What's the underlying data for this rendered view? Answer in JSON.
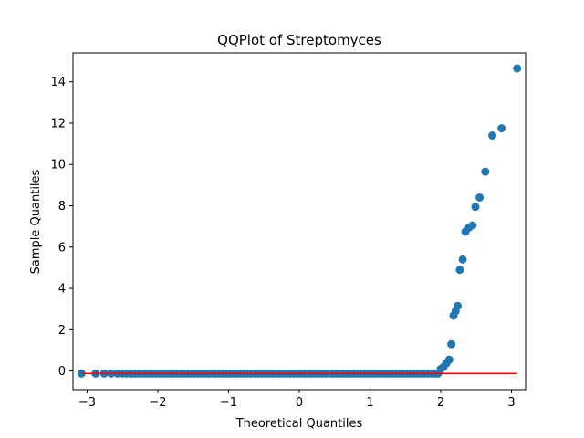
{
  "chart_data": {
    "type": "scatter",
    "title": "QQPlot of Streptomyces",
    "xlabel": "Theoretical Quantiles",
    "ylabel": "Sample Quantiles",
    "xlim": [
      -3.2,
      3.2
    ],
    "ylim": [
      -0.9,
      15.4
    ],
    "xticks": [
      -3,
      -2,
      -1,
      0,
      1,
      2,
      3
    ],
    "yticks": [
      0,
      2,
      4,
      6,
      8,
      10,
      12,
      14
    ],
    "grid": false,
    "colors": {
      "points": "#1f77b4",
      "reference_line": "#ff0000"
    },
    "reference_line": {
      "x": [
        -3.08,
        3.08
      ],
      "y": [
        -0.12,
        -0.12
      ]
    },
    "tail_points": [
      [
        2.0,
        0.1
      ],
      [
        2.04,
        0.2
      ],
      [
        2.08,
        0.38
      ],
      [
        2.12,
        0.55
      ],
      [
        2.15,
        1.3
      ],
      [
        2.18,
        2.68
      ],
      [
        2.21,
        2.9
      ],
      [
        2.24,
        3.15
      ],
      [
        2.27,
        4.9
      ],
      [
        2.31,
        5.4
      ],
      [
        2.35,
        6.75
      ],
      [
        2.4,
        6.95
      ],
      [
        2.45,
        7.05
      ],
      [
        2.49,
        7.95
      ],
      [
        2.55,
        8.4
      ],
      [
        2.63,
        9.65
      ],
      [
        2.73,
        11.4
      ],
      [
        2.86,
        11.75
      ],
      [
        3.08,
        14.65
      ]
    ],
    "flat_points": {
      "x": [
        -3.08,
        -2.88,
        -2.76,
        -2.66,
        -2.57,
        -2.5,
        -2.44,
        -2.38,
        -2.33,
        -2.28,
        -2.23,
        -2.18,
        -2.13,
        -2.08,
        -2.03,
        -1.98,
        -1.93,
        -1.88,
        -1.83,
        -1.78,
        -1.73,
        -1.68,
        -1.63,
        -1.58,
        -1.53,
        -1.48,
        -1.43,
        -1.38,
        -1.33,
        -1.28,
        -1.23,
        -1.18,
        -1.13,
        -1.08,
        -1.03,
        -0.98,
        -0.93,
        -0.88,
        -0.83,
        -0.78,
        -0.73,
        -0.68,
        -0.63,
        -0.58,
        -0.53,
        -0.48,
        -0.43,
        -0.38,
        -0.33,
        -0.28,
        -0.23,
        -0.18,
        -0.13,
        -0.08,
        -0.03,
        0.02,
        0.07,
        0.12,
        0.17,
        0.22,
        0.27,
        0.32,
        0.37,
        0.42,
        0.47,
        0.52,
        0.57,
        0.62,
        0.67,
        0.72,
        0.77,
        0.82,
        0.87,
        0.92,
        0.97,
        1.02,
        1.07,
        1.12,
        1.17,
        1.22,
        1.27,
        1.32,
        1.37,
        1.42,
        1.47,
        1.52,
        1.57,
        1.62,
        1.67,
        1.72,
        1.77,
        1.82,
        1.87,
        1.92,
        1.96
      ],
      "y": -0.12
    }
  }
}
